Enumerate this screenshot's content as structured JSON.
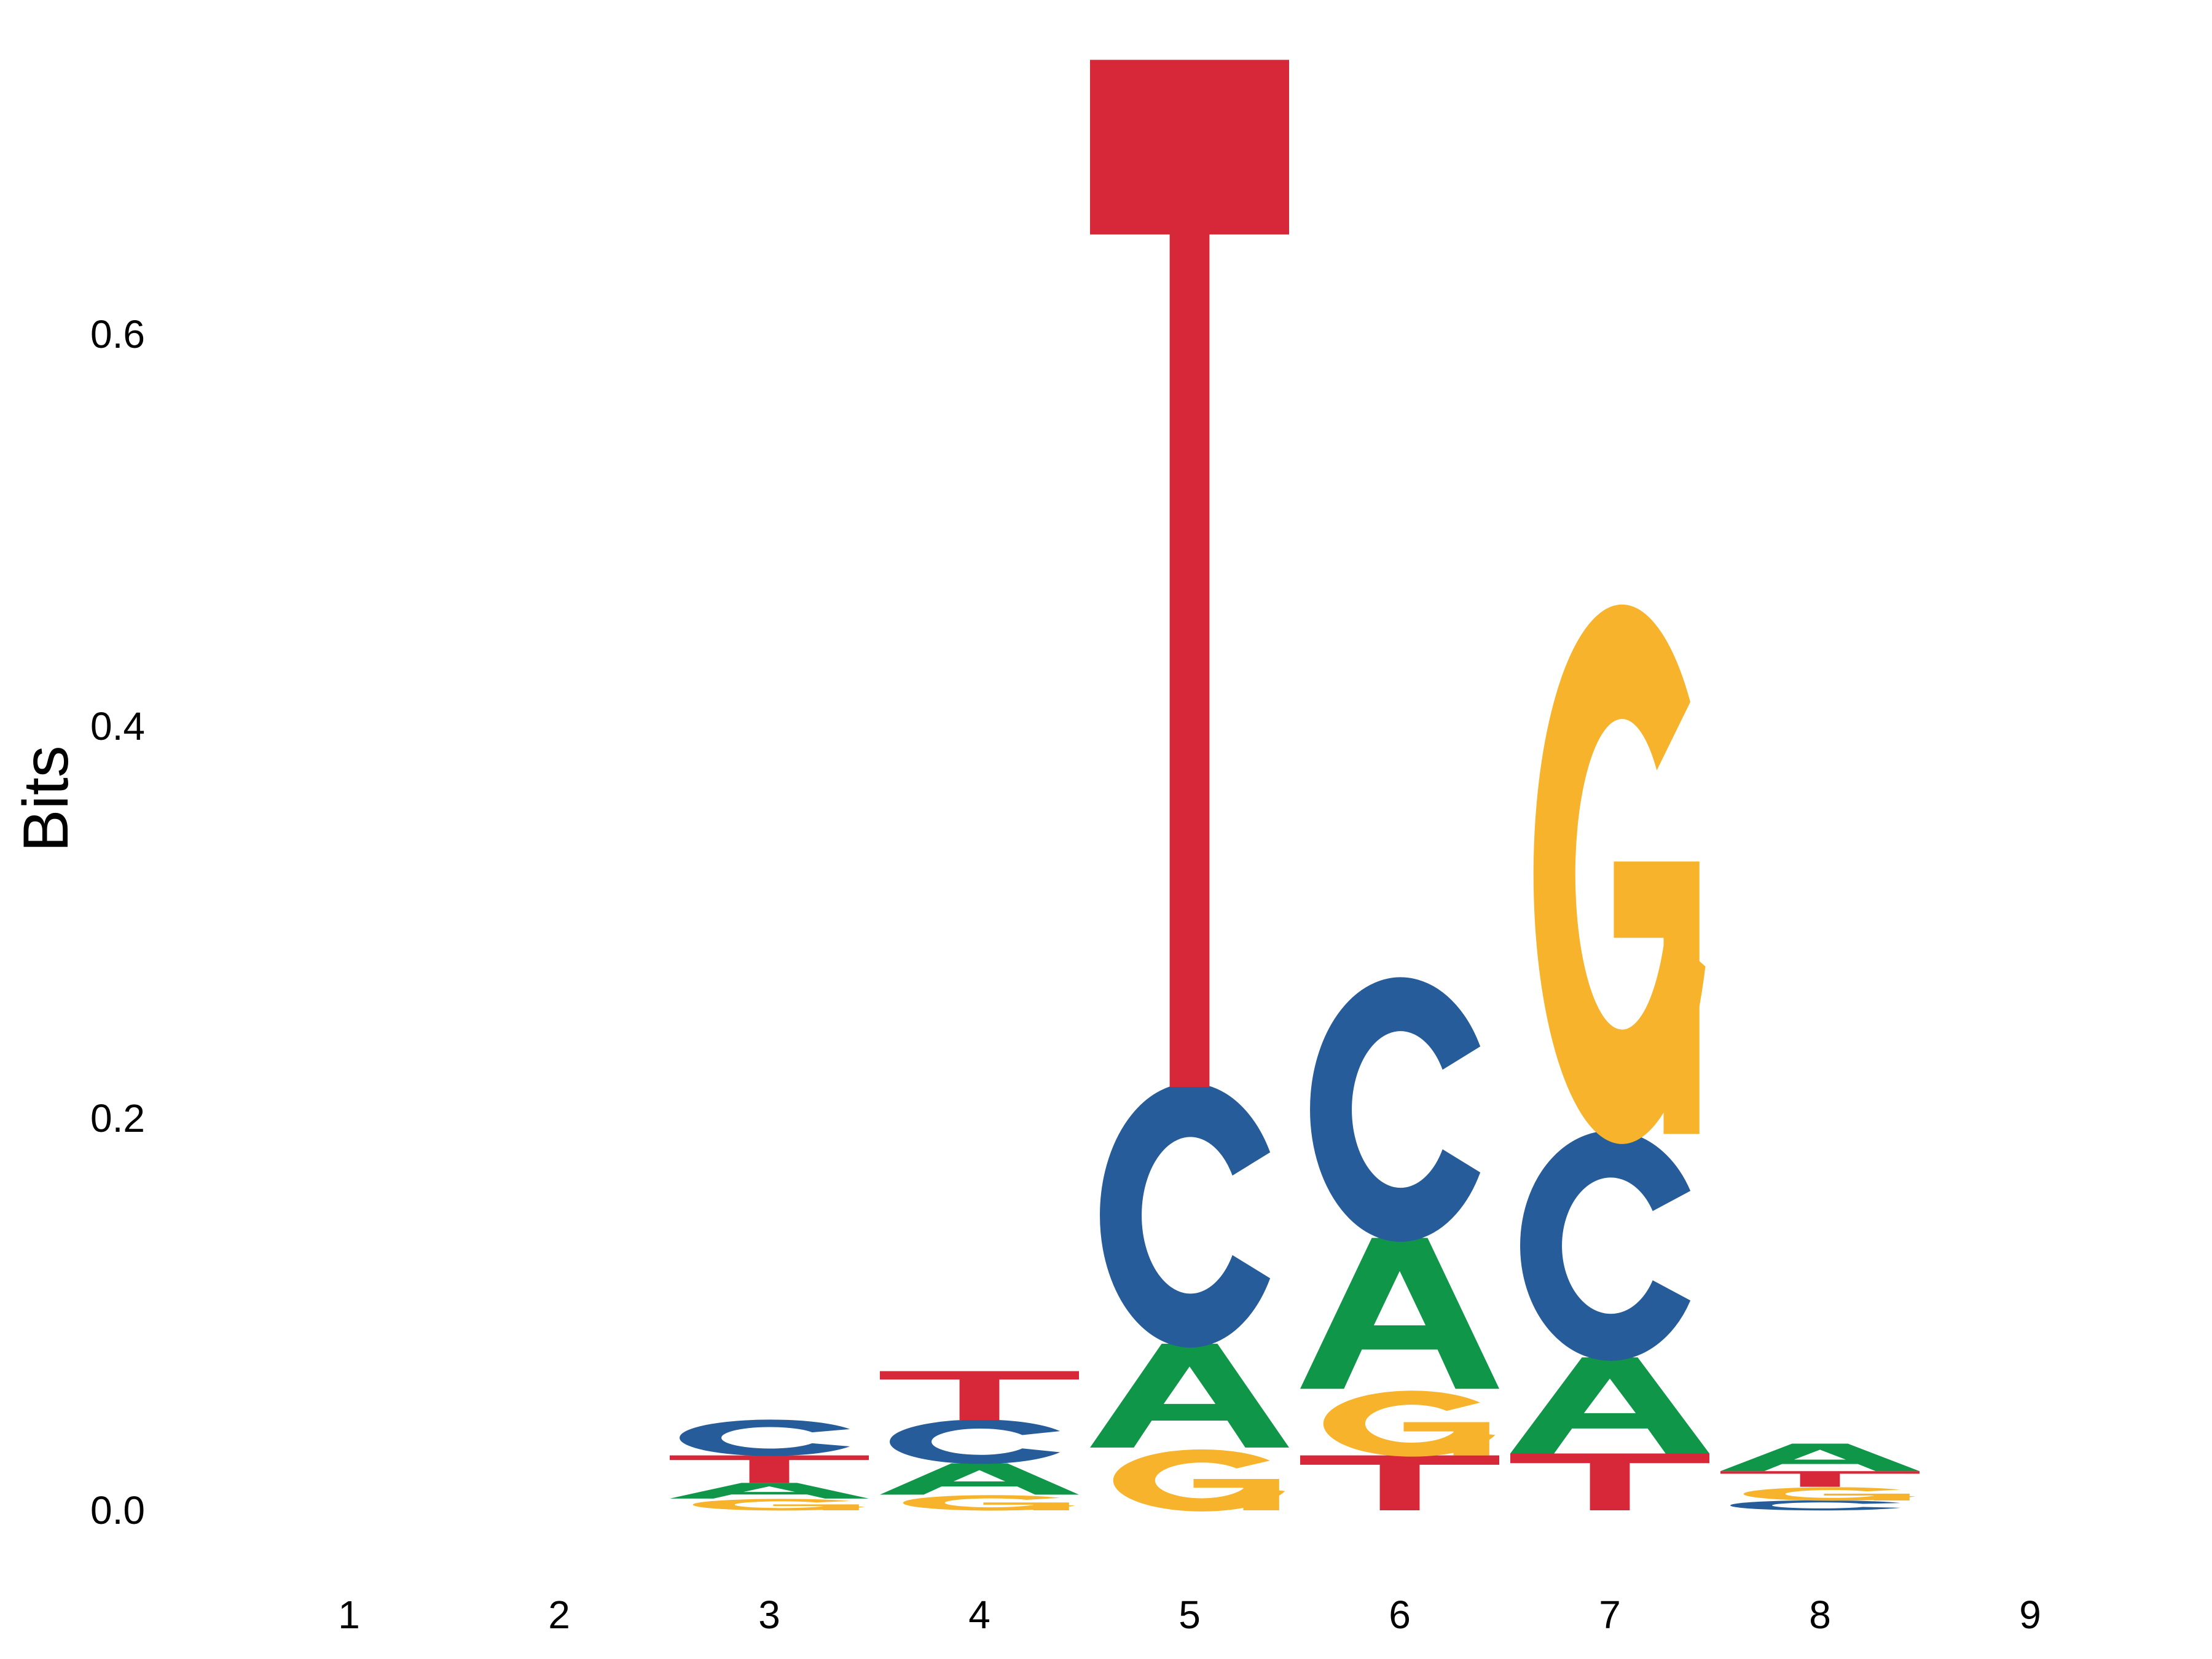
{
  "chart_data": {
    "type": "sequence-logo",
    "title": "",
    "xlabel": "",
    "ylabel": "Bits",
    "ylim": [
      0,
      0.74
    ],
    "yticks": [
      "0.0",
      "0.2",
      "0.4",
      "0.6"
    ],
    "ytick_values": [
      0,
      0.2,
      0.4,
      0.6
    ],
    "xticks": [
      "1",
      "2",
      "3",
      "4",
      "5",
      "6",
      "7",
      "8",
      "9"
    ],
    "grid": false,
    "legend": "none",
    "colors": {
      "A": "#109648",
      "C": "#255C99",
      "G": "#F7B32B",
      "T": "#D62839"
    },
    "positions": [
      {
        "position": "1",
        "stack": []
      },
      {
        "position": "2",
        "stack": []
      },
      {
        "position": "3",
        "stack": [
          {
            "letter": "G",
            "height": 0.006
          },
          {
            "letter": "A",
            "height": 0.008
          },
          {
            "letter": "T",
            "height": 0.014
          },
          {
            "letter": "C",
            "height": 0.018
          }
        ]
      },
      {
        "position": "4",
        "stack": [
          {
            "letter": "G",
            "height": 0.008
          },
          {
            "letter": "A",
            "height": 0.016
          },
          {
            "letter": "C",
            "height": 0.022
          },
          {
            "letter": "T",
            "height": 0.025
          }
        ]
      },
      {
        "position": "5",
        "stack": [
          {
            "letter": "G",
            "height": 0.032
          },
          {
            "letter": "A",
            "height": 0.053
          },
          {
            "letter": "C",
            "height": 0.131
          },
          {
            "letter": "T",
            "height": 0.524
          }
        ]
      },
      {
        "position": "6",
        "stack": [
          {
            "letter": "T",
            "height": 0.028
          },
          {
            "letter": "G",
            "height": 0.034
          },
          {
            "letter": "A",
            "height": 0.077
          },
          {
            "letter": "C",
            "height": 0.131
          }
        ]
      },
      {
        "position": "7",
        "stack": [
          {
            "letter": "T",
            "height": 0.029
          },
          {
            "letter": "A",
            "height": 0.049
          },
          {
            "letter": "C",
            "height": 0.114
          },
          {
            "letter": "G",
            "height": 0.278
          }
        ]
      },
      {
        "position": "8",
        "stack": [
          {
            "letter": "C",
            "height": 0.005
          },
          {
            "letter": "G",
            "height": 0.007
          },
          {
            "letter": "T",
            "height": 0.008
          },
          {
            "letter": "A",
            "height": 0.014
          }
        ]
      },
      {
        "position": "9",
        "stack": []
      }
    ]
  }
}
